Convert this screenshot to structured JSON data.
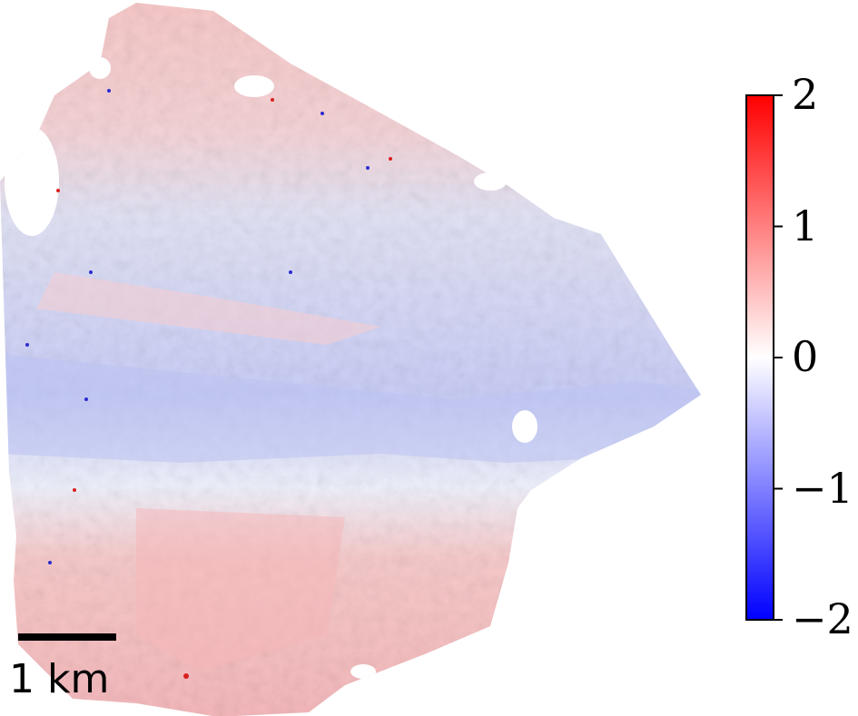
{
  "colorbar": {
    "colormap": "bwr",
    "min_color": "#0000ff",
    "mid_color": "#ffffff",
    "max_color": "#ff0000",
    "ticks": [
      {
        "value": 2,
        "label": "2"
      },
      {
        "value": 1,
        "label": "1"
      },
      {
        "value": 0,
        "label": "0"
      },
      {
        "value": -1,
        "label": "−1"
      },
      {
        "value": -2,
        "label": "−2"
      }
    ]
  },
  "scale_bar": {
    "label": "1 km"
  },
  "map": {
    "description_regions": [
      "positive-north",
      "negative-central-band",
      "positive-south"
    ],
    "positive_color": "#f6b9b9",
    "negative_color": "#c9cdf6",
    "neutral_color": "#f7f3f5"
  }
}
